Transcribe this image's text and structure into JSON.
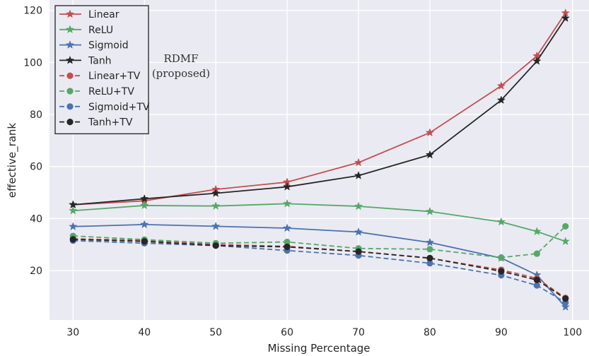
{
  "chart_data": {
    "type": "line",
    "xlabel": "Missing Percentage",
    "ylabel": "effective_rank",
    "x": [
      30,
      40,
      50,
      60,
      70,
      80,
      90,
      95,
      99
    ],
    "xticks": [
      30,
      40,
      50,
      60,
      70,
      80,
      90,
      100
    ],
    "yticks": [
      20,
      40,
      60,
      80,
      100,
      120
    ],
    "xlim": [
      26.7,
      102.3
    ],
    "ylim": [
      1.0,
      124.0
    ],
    "grid": true,
    "background": "#eaeaf2",
    "legend_position": "top-left",
    "annotation": [
      "RDMF",
      "(proposed)"
    ],
    "series": [
      {
        "name": "Linear",
        "color": "#c44e52",
        "linestyle": "solid",
        "marker": "star",
        "values": [
          45.3,
          46.8,
          51.2,
          54.0,
          61.5,
          73.0,
          91.0,
          102.5,
          119.0
        ]
      },
      {
        "name": "ReLU",
        "color": "#55a868",
        "linestyle": "solid",
        "marker": "star",
        "values": [
          43.0,
          45.0,
          44.8,
          45.7,
          44.7,
          42.7,
          38.7,
          35.0,
          31.2
        ]
      },
      {
        "name": "Sigmoid",
        "color": "#4c72b0",
        "linestyle": "solid",
        "marker": "star",
        "values": [
          36.9,
          37.7,
          37.0,
          36.3,
          34.8,
          30.8,
          24.8,
          18.3,
          6.0
        ]
      },
      {
        "name": "Tanh",
        "color": "#262626",
        "linestyle": "solid",
        "marker": "star",
        "values": [
          45.3,
          47.6,
          49.7,
          52.2,
          56.5,
          64.5,
          85.5,
          100.5,
          117.0
        ]
      },
      {
        "name": "Linear+TV",
        "color": "#c44e52",
        "linestyle": "dashed",
        "marker": "circle",
        "values": [
          32.2,
          31.6,
          30.0,
          29.3,
          27.3,
          24.7,
          20.3,
          17.0,
          9.5
        ]
      },
      {
        "name": "ReLU+TV",
        "color": "#55a868",
        "linestyle": "dashed",
        "marker": "circle",
        "values": [
          33.3,
          31.9,
          30.5,
          31.0,
          28.5,
          28.2,
          25.0,
          26.5,
          37.0
        ]
      },
      {
        "name": "Sigmoid+TV",
        "color": "#4c72b0",
        "linestyle": "dashed",
        "marker": "circle",
        "values": [
          31.5,
          30.5,
          29.6,
          27.7,
          25.8,
          22.8,
          18.2,
          14.3,
          7.7
        ]
      },
      {
        "name": "Tanh+TV",
        "color": "#262626",
        "linestyle": "dashed",
        "marker": "circle",
        "values": [
          32.0,
          31.2,
          29.6,
          29.1,
          27.3,
          24.8,
          19.7,
          16.4,
          9.2
        ]
      }
    ]
  }
}
